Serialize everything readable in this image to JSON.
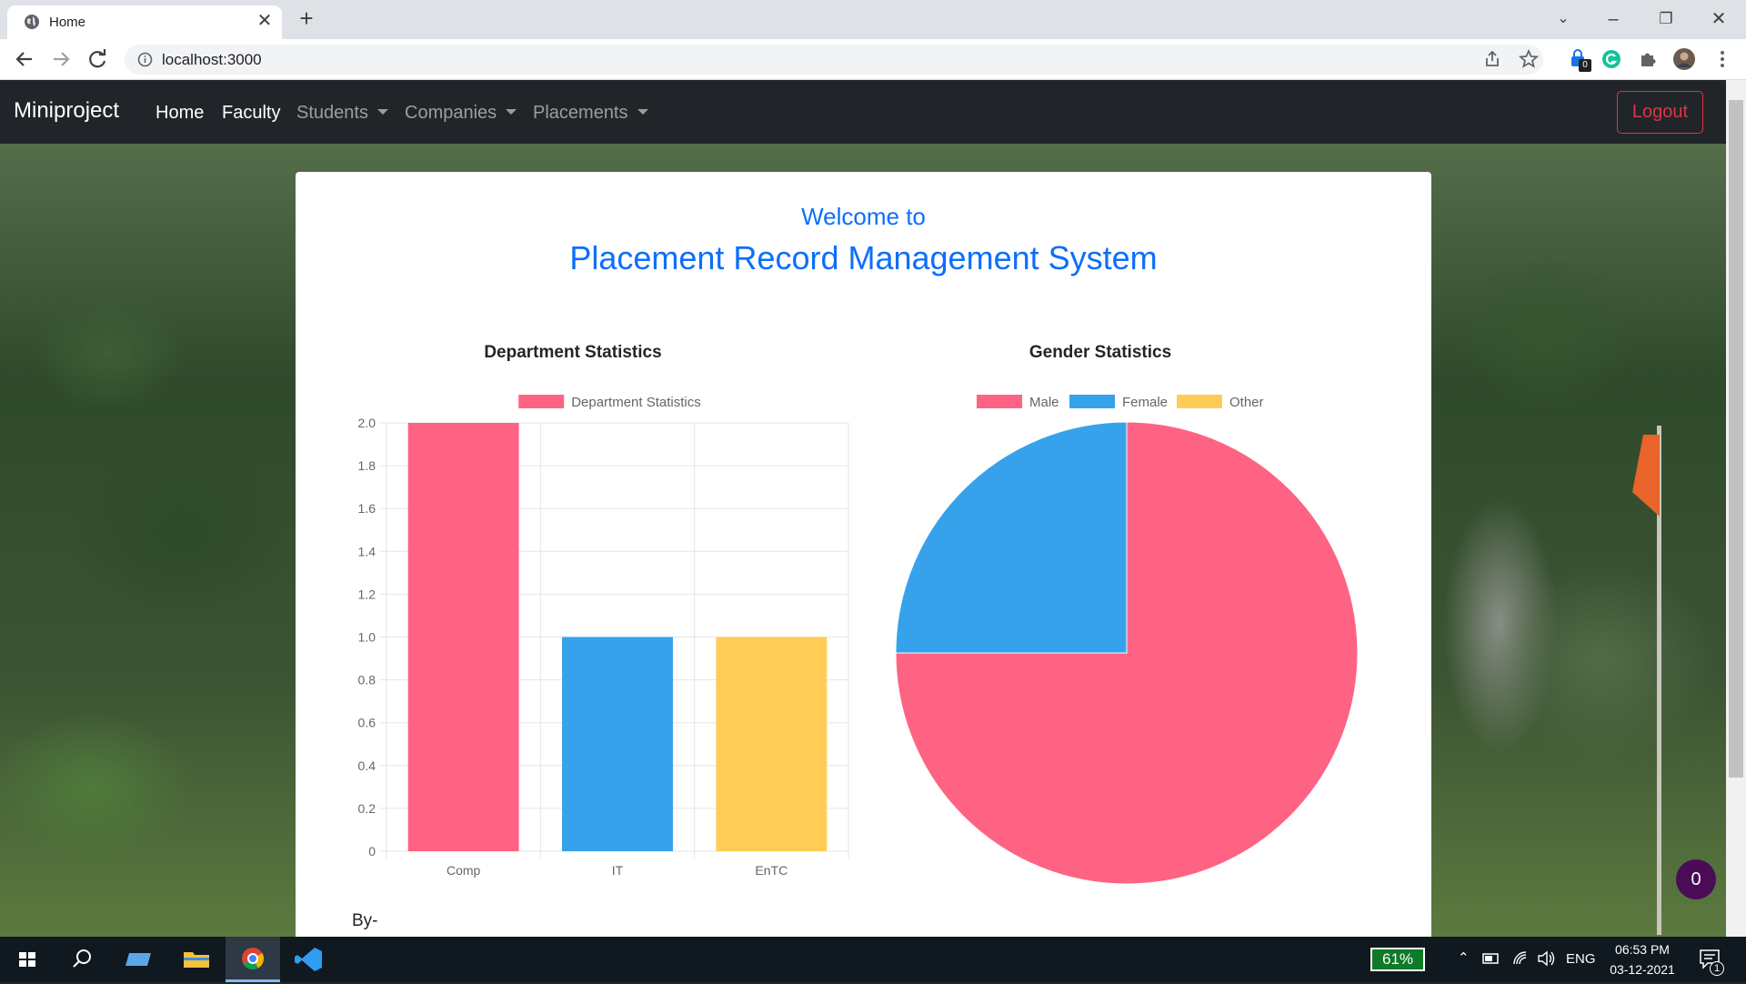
{
  "browser": {
    "tab_title": "Home",
    "url": "localhost:3000",
    "extension_badge": "0"
  },
  "navbar": {
    "brand": "Miniproject",
    "links": [
      "Home",
      "Faculty",
      "Students",
      "Companies",
      "Placements"
    ],
    "logout_label": "Logout"
  },
  "hero": {
    "welcome": "Welcome to",
    "title": "Placement Record Management System"
  },
  "colors": {
    "pink": "#ff6384",
    "blue": "#36a2eb",
    "yellow": "#ffcd56",
    "brand_blue": "#0d6efd",
    "danger": "#dc3545"
  },
  "chart_data": [
    {
      "type": "bar",
      "title": "Department Statistics",
      "categories": [
        "Comp",
        "IT",
        "EnTC"
      ],
      "series": [
        {
          "name": "Department Statistics",
          "values": [
            2,
            1,
            1
          ]
        }
      ],
      "ylim": [
        0,
        2.0
      ],
      "yticks": [
        "0",
        "0.2",
        "0.4",
        "0.6",
        "0.8",
        "1.0",
        "1.2",
        "1.4",
        "1.6",
        "1.8",
        "2.0"
      ],
      "bar_colors": [
        "#ff6384",
        "#36a2eb",
        "#ffcd56"
      ],
      "legend": "top",
      "grid": true
    },
    {
      "type": "pie",
      "title": "Gender Statistics",
      "categories": [
        "Male",
        "Female",
        "Other"
      ],
      "values": [
        3,
        1,
        0
      ],
      "colors": [
        "#ff6384",
        "#36a2eb",
        "#ffcd56"
      ],
      "legend": "top"
    }
  ],
  "footer": {
    "byline": "By-"
  },
  "fab_count": "0",
  "taskbar": {
    "battery": "61%",
    "language": "ENG",
    "time": "06:53 PM",
    "date": "03-12-2021",
    "notification_count": "1"
  }
}
